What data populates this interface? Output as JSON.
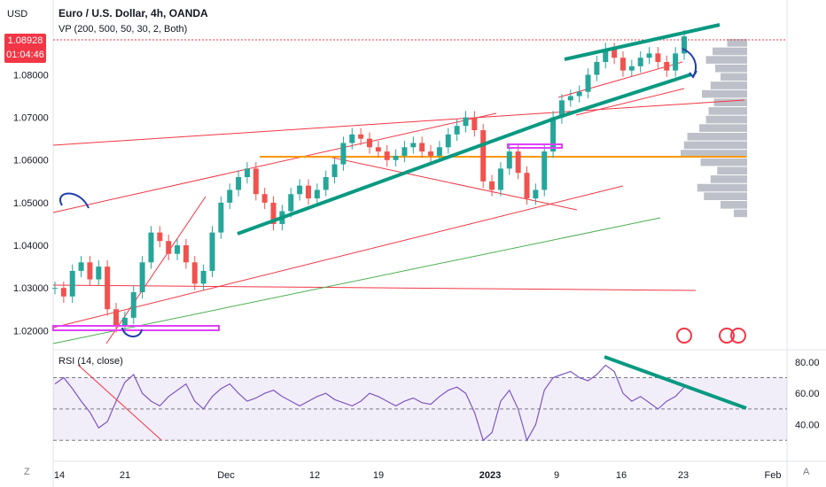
{
  "header": {
    "title": "Euro / U.S. Dollar, 4h, OANDA",
    "indicator": "VP (200, 500, 50, 30, 2, Both)",
    "currency": "USD",
    "last_price": "1.08928",
    "countdown": "01:04:46"
  },
  "rsi": {
    "label": "RSI (14, close)",
    "ticks": [
      "80.00",
      "60.00",
      "40.00"
    ]
  },
  "bottom_bar": {
    "left_button": "Z",
    "right_button": "A"
  },
  "colors": {
    "up": "#26a69a",
    "down": "#ef5350",
    "trendline": "#089981",
    "red_line": "#f23645",
    "orange_line": "#ff9800",
    "rsi_line": "#7e57c2",
    "price_badge": "#f23645",
    "magenta_box": "#e040fb"
  },
  "chart_data": {
    "type": "line",
    "price_axis": {
      "ticks": [
        "1.08000",
        "1.07000",
        "1.06000",
        "1.05000",
        "1.04000",
        "1.03000",
        "1.02000"
      ]
    },
    "time_axis": {
      "ticks": [
        "14",
        "21",
        "Dec",
        "12",
        "19",
        "2023",
        "9",
        "16",
        "23",
        "Feb"
      ]
    },
    "series": [
      {
        "values": [
          1.03,
          1.028,
          1.034,
          1.036,
          1.032,
          1.035,
          1.025,
          1.021,
          1.023,
          1.029,
          1.036,
          1.043,
          1.041,
          1.038,
          1.04,
          1.036,
          1.031,
          1.034,
          1.043,
          1.05,
          1.053,
          1.056,
          1.058,
          1.052,
          1.05,
          1.045,
          1.048,
          1.052,
          1.054,
          1.051,
          1.053,
          1.056,
          1.059,
          1.064,
          1.066,
          1.065,
          1.063,
          1.062,
          1.06,
          1.061,
          1.063,
          1.064,
          1.062,
          1.061,
          1.063,
          1.066,
          1.068,
          1.07,
          1.067,
          1.055,
          1.053,
          1.058,
          1.062,
          1.057,
          1.051,
          1.053,
          1.062,
          1.07,
          1.074,
          1.075,
          1.076,
          1.08,
          1.083,
          1.086,
          1.084,
          1.081,
          1.082,
          1.084,
          1.085,
          1.083,
          1.081,
          1.085,
          1.089
        ]
      }
    ],
    "rsi_values": [
      66,
      70,
      63,
      55,
      48,
      38,
      42,
      55,
      67,
      72,
      60,
      55,
      52,
      58,
      62,
      66,
      55,
      50,
      58,
      63,
      66,
      60,
      55,
      57,
      60,
      62,
      58,
      55,
      52,
      55,
      58,
      60,
      56,
      54,
      52,
      55,
      60,
      58,
      55,
      52,
      55,
      57,
      54,
      53,
      58,
      62,
      64,
      60,
      48,
      30,
      35,
      55,
      62,
      50,
      30,
      40,
      62,
      70,
      72,
      74,
      70,
      68,
      72,
      78,
      74,
      60,
      55,
      58,
      54,
      50,
      55,
      58,
      64
    ],
    "rsi_range": [
      20,
      85
    ],
    "rsi_levels": [
      70,
      50,
      30
    ],
    "volume_profile": [
      {
        "price": 1.0875,
        "v": 0.3
      },
      {
        "price": 1.0855,
        "v": 0.52
      },
      {
        "price": 1.0835,
        "v": 0.62
      },
      {
        "price": 1.0815,
        "v": 0.48
      },
      {
        "price": 1.0795,
        "v": 0.4
      },
      {
        "price": 1.0775,
        "v": 0.55
      },
      {
        "price": 1.0755,
        "v": 0.68
      },
      {
        "price": 1.0735,
        "v": 0.5
      },
      {
        "price": 1.0715,
        "v": 0.58
      },
      {
        "price": 1.0695,
        "v": 0.62
      },
      {
        "price": 1.0675,
        "v": 0.72
      },
      {
        "price": 1.0655,
        "v": 0.9
      },
      {
        "price": 1.0635,
        "v": 0.95
      },
      {
        "price": 1.0615,
        "v": 1.0
      },
      {
        "price": 1.0595,
        "v": 0.7
      },
      {
        "price": 1.0575,
        "v": 0.45
      },
      {
        "price": 1.0555,
        "v": 0.55
      },
      {
        "price": 1.0535,
        "v": 0.75
      },
      {
        "price": 1.0515,
        "v": 0.65
      },
      {
        "price": 1.0495,
        "v": 0.4
      },
      {
        "price": 1.0475,
        "v": 0.2
      }
    ]
  }
}
